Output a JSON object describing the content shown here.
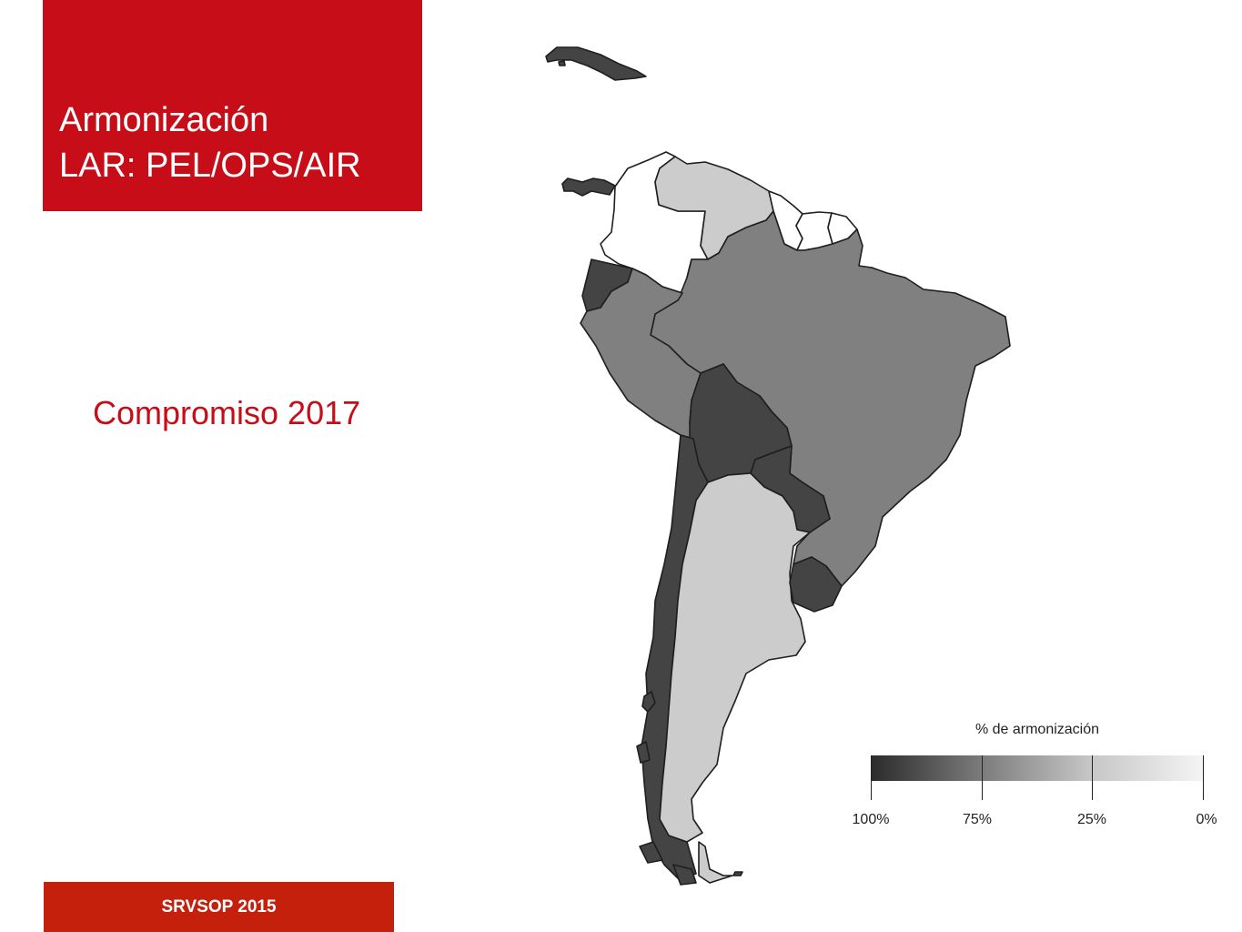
{
  "title": {
    "line1": "Armonización",
    "line2": "LAR: PEL/OPS/AIR"
  },
  "subtitle": "Compromiso 2017",
  "footer": "SRVSOP 2015",
  "legend": {
    "title": "% de armonización",
    "labels": [
      "100%",
      "75%",
      "25%",
      "0%"
    ]
  },
  "colors": {
    "brand_red": "#c70d18",
    "footer_red": "#c4200c",
    "level_100": "#444444",
    "level_75": "#808080",
    "level_25": "#cccccc",
    "level_0": "#ffffff"
  }
}
